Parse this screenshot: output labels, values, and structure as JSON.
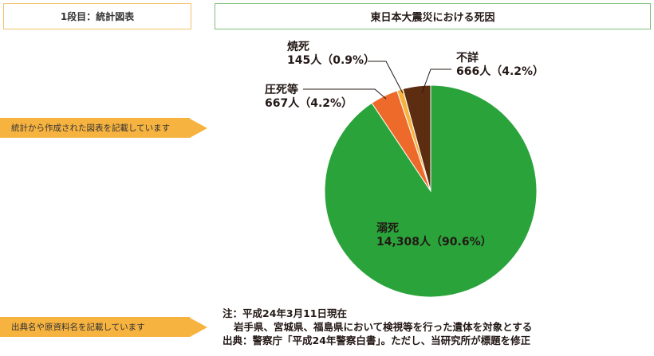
{
  "tier_label": "1段目：統計図表",
  "guide_chart": "統計から作成された図表を記載しています",
  "guide_source": "出典名や原資料名を記載しています",
  "notes": {
    "line1": "注：平成24年3月11日現在",
    "line2": "岩手県、宮城県、福島県において検視等を行った遺体を対象とする",
    "line3": "出典：警察庁「平成24年警察白書」。ただし、当研究所が標題を修正"
  },
  "colors": {
    "drowning": "#29a33a",
    "crush": "#ed6a2a",
    "burn": "#f7b340",
    "unknown": "#5d2d12"
  },
  "chart_data": {
    "type": "pie",
    "title": "東日本大震災における死因",
    "slices": [
      {
        "name": "溺死",
        "value": 14308,
        "value_label": "14,308人（90.6%）",
        "percent": 90.6,
        "color": "#29a33a"
      },
      {
        "name": "圧死等",
        "value": 667,
        "value_label": "667人（4.2%）",
        "percent": 4.2,
        "color": "#ed6a2a"
      },
      {
        "name": "焼死",
        "value": 145,
        "value_label": "145人（0.9%）",
        "percent": 0.9,
        "color": "#f7b340"
      },
      {
        "name": "不詳",
        "value": 666,
        "value_label": "666人（4.2%）",
        "percent": 4.2,
        "color": "#5d2d12"
      }
    ]
  }
}
